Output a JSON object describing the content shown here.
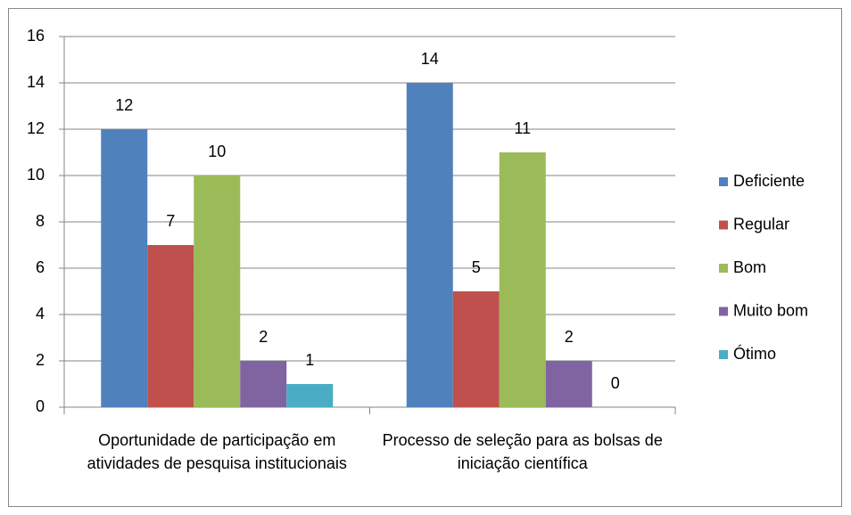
{
  "chart_data": {
    "type": "bar",
    "categories": [
      "Oportunidade de participação em atividades de pesquisa institucionais",
      "Processo de seleção para as bolsas de iniciação científica"
    ],
    "series": [
      {
        "name": "Deficiente",
        "color": "#4f81bd",
        "values": [
          12,
          14
        ]
      },
      {
        "name": "Regular",
        "color": "#c0504d",
        "values": [
          7,
          5
        ]
      },
      {
        "name": "Bom",
        "color": "#9bbb59",
        "values": [
          10,
          11
        ]
      },
      {
        "name": "Muito bom",
        "color": "#8064a2",
        "values": [
          2,
          2
        ]
      },
      {
        "name": "Ótimo",
        "color": "#4bacc6",
        "values": [
          1,
          0
        ]
      }
    ],
    "ylim": [
      0,
      16
    ],
    "yticks": [
      0,
      2,
      4,
      6,
      8,
      10,
      12,
      14,
      16
    ],
    "grid": true,
    "legend": "right"
  }
}
